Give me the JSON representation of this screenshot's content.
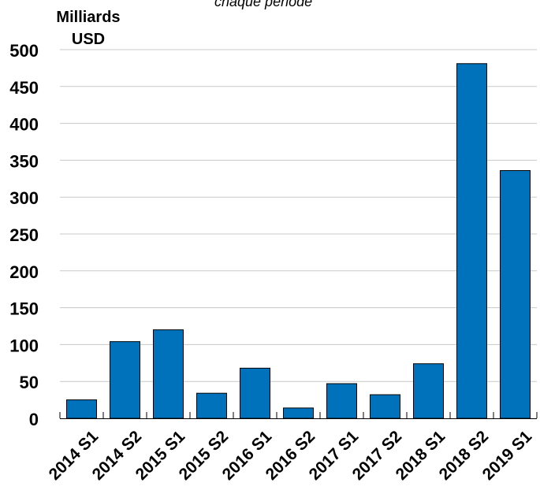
{
  "chart_data": {
    "type": "bar",
    "subtitle_fragment": "chaque période",
    "ylabel_line1": "Milliards",
    "ylabel_line2": "USD",
    "ylim": [
      0,
      500
    ],
    "yticks": [
      0,
      50,
      100,
      150,
      200,
      250,
      300,
      350,
      400,
      450,
      500
    ],
    "grid": true,
    "categories": [
      "2014 S1",
      "2014 S2",
      "2015 S1",
      "2015 S2",
      "2016 S1",
      "2016 S2",
      "2017 S1",
      "2017 S2",
      "2018 S1",
      "2018 S2",
      "2019 S1"
    ],
    "values": [
      25,
      104,
      120,
      34,
      68,
      14,
      47,
      32,
      74,
      481,
      336
    ],
    "bar_color": "#0072bc",
    "grid_color": "#c8c8c8"
  }
}
